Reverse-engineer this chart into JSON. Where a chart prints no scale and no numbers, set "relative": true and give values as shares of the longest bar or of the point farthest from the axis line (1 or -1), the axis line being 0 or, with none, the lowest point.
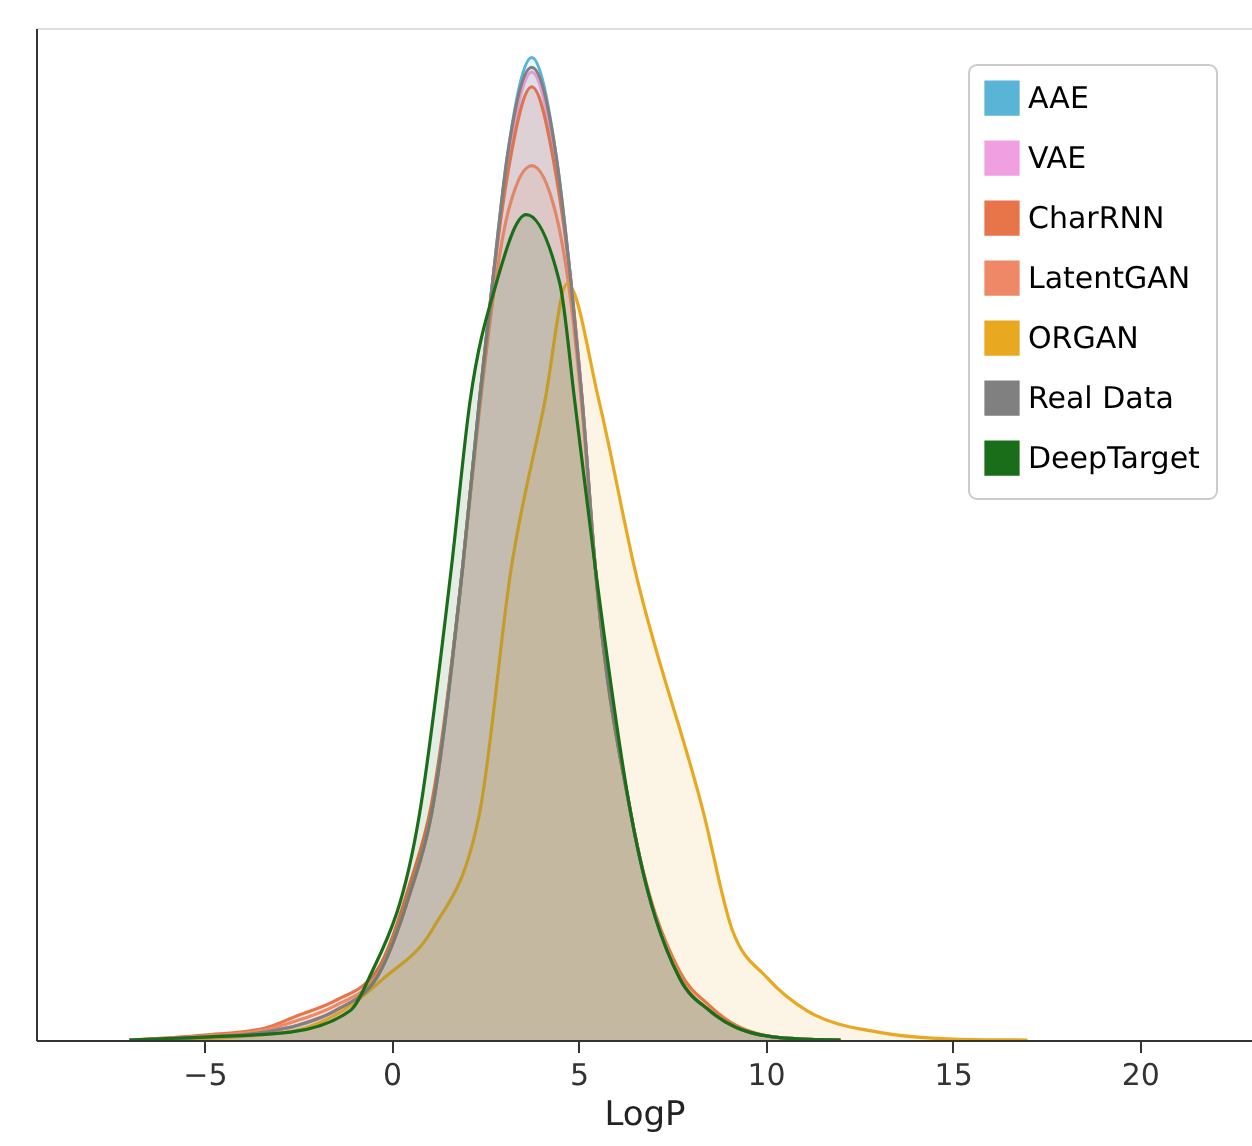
{
  "chart_data": {
    "type": "area",
    "xlabel": "LogP",
    "relative": true,
    "xlim": [
      -9.5,
      23
    ],
    "xticks": [
      {
        "value": -5,
        "label": "−5"
      },
      0,
      5,
      10,
      15,
      20
    ],
    "legend": "top right",
    "grid": false,
    "marker": "none",
    "line_style": "solid",
    "series": [
      {
        "name": "AAE",
        "color": "#5ab4d6",
        "x": [
          -7,
          -5,
          -3.4,
          -2.5,
          -1.5,
          -0.4,
          0.5,
          1.07,
          1.9,
          2.35,
          2.7,
          3.1,
          3.75,
          4.4,
          4.8,
          5.1,
          5.45,
          6.4,
          7.7,
          8.5,
          9.2,
          10.5,
          12
        ],
        "values": [
          0,
          0.003,
          0.008,
          0.015,
          0.03,
          0.063,
          0.15,
          0.23,
          0.48,
          0.65,
          0.77,
          0.9,
          1.0,
          0.9,
          0.77,
          0.65,
          0.48,
          0.23,
          0.063,
          0.03,
          0.013,
          0.002,
          0
        ]
      },
      {
        "name": "VAE",
        "color": "#f0a0e0",
        "x": [
          -7,
          -5,
          -3.4,
          -2.5,
          -1.5,
          -0.4,
          0.5,
          1.07,
          1.9,
          2.35,
          2.7,
          3.1,
          3.75,
          4.4,
          4.8,
          5.1,
          5.45,
          6.4,
          7.7,
          8.5,
          9.2,
          10.5,
          12
        ],
        "values": [
          0,
          0.003,
          0.008,
          0.015,
          0.03,
          0.063,
          0.15,
          0.23,
          0.48,
          0.65,
          0.77,
          0.89,
          0.985,
          0.89,
          0.77,
          0.65,
          0.48,
          0.23,
          0.063,
          0.03,
          0.013,
          0.002,
          0
        ]
      },
      {
        "name": "CharRNN",
        "color": "#e8744a",
        "x": [
          -7,
          -5,
          -3.4,
          -2.5,
          -1.5,
          -0.4,
          0.5,
          1.07,
          1.9,
          2.35,
          2.7,
          3.1,
          3.75,
          4.4,
          4.8,
          5.1,
          5.45,
          6.4,
          7.7,
          8.5,
          9.2,
          10.5,
          12
        ],
        "values": [
          0,
          0.005,
          0.012,
          0.025,
          0.04,
          0.07,
          0.16,
          0.24,
          0.48,
          0.65,
          0.77,
          0.88,
          0.97,
          0.88,
          0.77,
          0.65,
          0.48,
          0.23,
          0.07,
          0.035,
          0.015,
          0.002,
          0
        ]
      },
      {
        "name": "LatentGAN",
        "color": "#ee8866",
        "x": [
          -7,
          -5,
          -3.4,
          -2.5,
          -1.5,
          -0.4,
          0.5,
          1.07,
          1.9,
          2.35,
          2.7,
          3.1,
          3.75,
          4.4,
          4.8,
          5.1,
          5.45,
          6.4,
          7.7,
          8.5,
          9.2,
          10.5,
          12
        ],
        "values": [
          0,
          0.004,
          0.01,
          0.02,
          0.035,
          0.065,
          0.15,
          0.23,
          0.48,
          0.64,
          0.75,
          0.84,
          0.89,
          0.84,
          0.75,
          0.64,
          0.48,
          0.23,
          0.065,
          0.03,
          0.013,
          0.002,
          0
        ]
      },
      {
        "name": "ORGAN",
        "color": "#e8a820",
        "x": [
          -6,
          -2.8,
          -1.3,
          -0.2,
          1.1,
          2.35,
          3.2,
          4.1,
          4.7,
          5.55,
          6.5,
          8.35,
          9.1,
          10.05,
          11.1,
          13,
          15,
          17
        ],
        "values": [
          0,
          0.008,
          0.03,
          0.063,
          0.113,
          0.23,
          0.48,
          0.65,
          0.77,
          0.65,
          0.48,
          0.23,
          0.113,
          0.063,
          0.03,
          0.008,
          0.001,
          0
        ]
      },
      {
        "name": "Real Data",
        "color": "#808080",
        "x": [
          -7,
          -5,
          -3.4,
          -2.5,
          -1.5,
          -0.4,
          0.5,
          1.07,
          1.9,
          2.35,
          2.7,
          3.1,
          3.75,
          4.4,
          4.8,
          5.1,
          5.45,
          6.4,
          7.7,
          8.5,
          9.2,
          10.5,
          12
        ],
        "values": [
          0,
          0.003,
          0.008,
          0.015,
          0.03,
          0.063,
          0.15,
          0.23,
          0.48,
          0.65,
          0.77,
          0.9,
          0.99,
          0.9,
          0.77,
          0.65,
          0.48,
          0.23,
          0.063,
          0.03,
          0.013,
          0.002,
          0
        ]
      },
      {
        "name": "DeepTarget",
        "color": "#1a6e1a",
        "x": [
          -7,
          -5,
          -2.7,
          -1.1,
          -0.6,
          0.75,
          1.6,
          2.1,
          2.8,
          3.6,
          4.5,
          4.9,
          5.45,
          6.4,
          7.7,
          8.5,
          9.2,
          10.5,
          12
        ],
        "values": [
          0,
          0.003,
          0.008,
          0.03,
          0.063,
          0.23,
          0.48,
          0.65,
          0.77,
          0.84,
          0.77,
          0.65,
          0.48,
          0.23,
          0.063,
          0.03,
          0.013,
          0.002,
          0
        ]
      }
    ]
  }
}
